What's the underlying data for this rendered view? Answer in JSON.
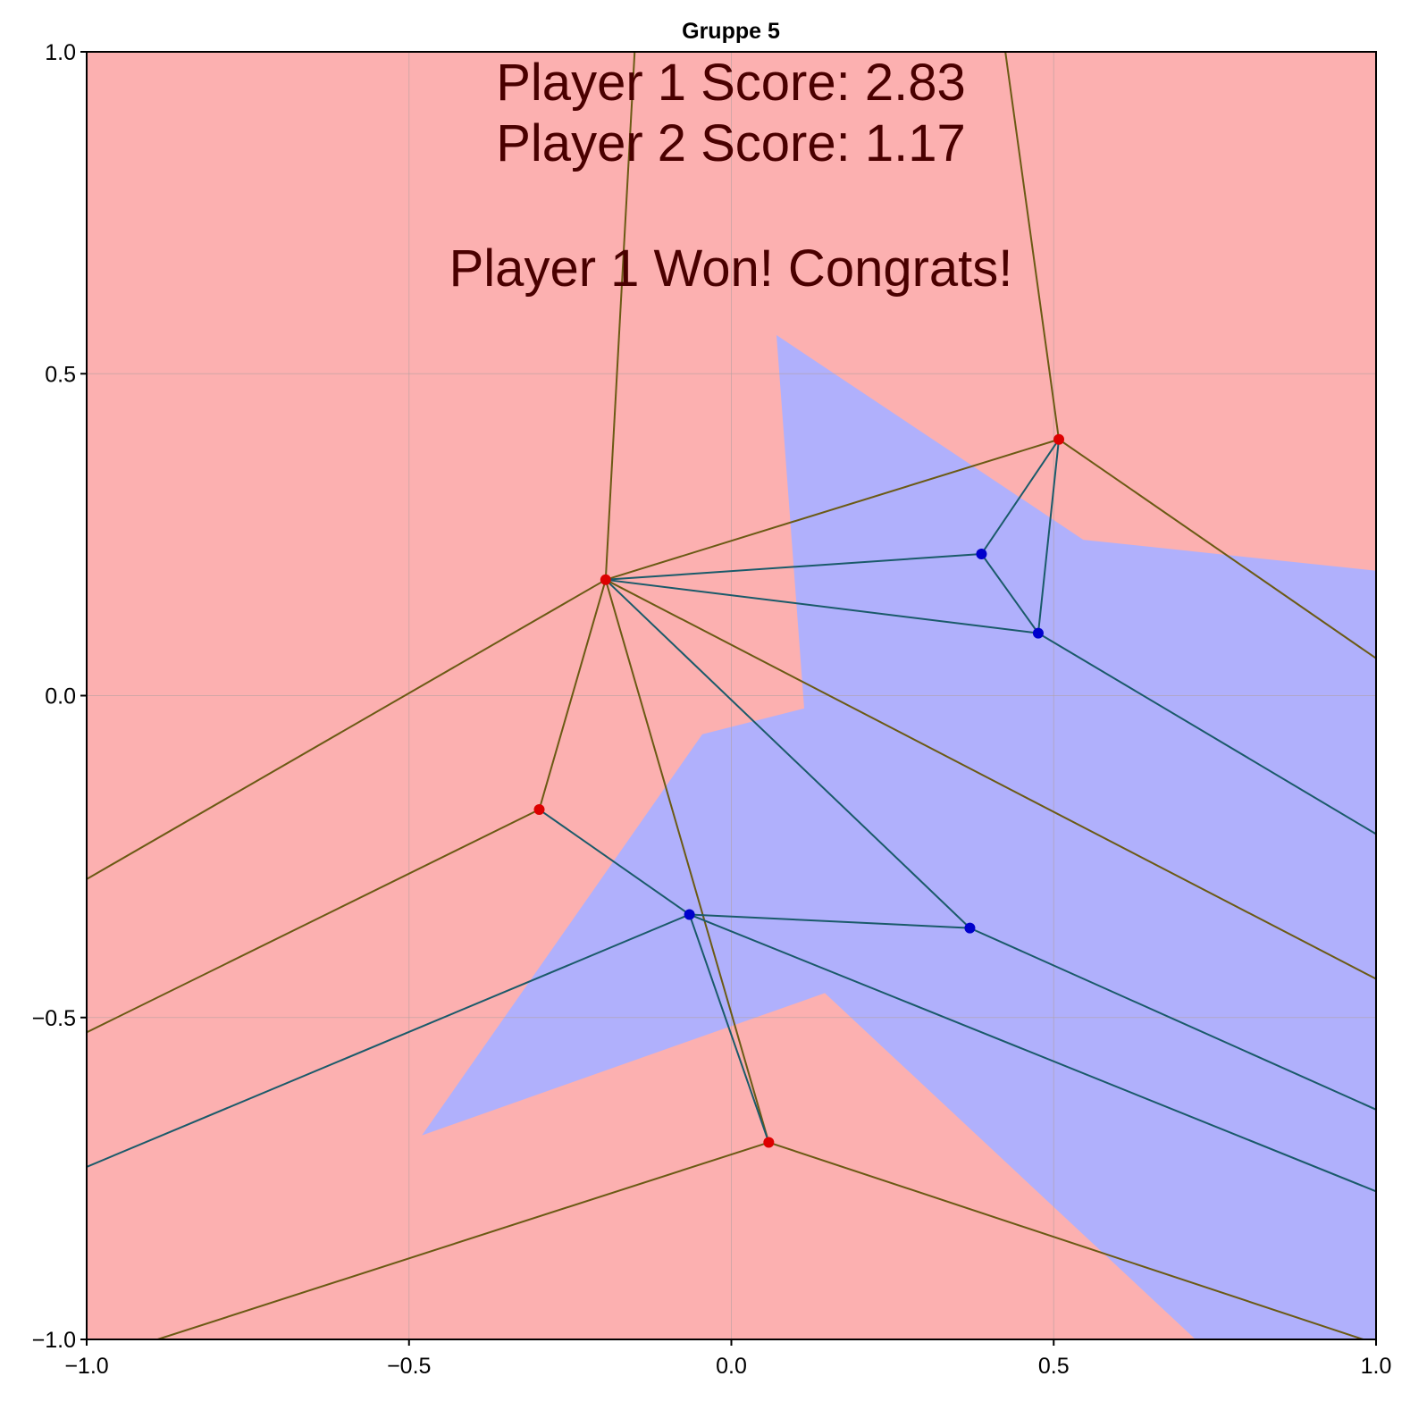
{
  "chart_data": {
    "type": "scatter",
    "title": "Gruppe 5",
    "xlim": [
      -1.0,
      1.0
    ],
    "ylim": [
      -1.0,
      1.0
    ],
    "x_ticks": [
      -1.0,
      -0.5,
      0.0,
      0.5,
      1.0
    ],
    "y_ticks": [
      -1.0,
      -0.5,
      0.0,
      0.5,
      1.0
    ],
    "x_tick_labels": [
      "−1.0",
      "−0.5",
      "0.0",
      "0.5",
      "1.0"
    ],
    "y_tick_labels": [
      "−1.0",
      "−0.5",
      "0.0",
      "0.5",
      "1.0"
    ],
    "grid": true,
    "colors": {
      "player1_region": "#fcb0b0",
      "player2_region": "#b0b0fc",
      "player1_point": "#dd0000",
      "player2_point": "#0000cc",
      "player1_edge": "#6b5a14",
      "player2_edge": "#1a5a6a",
      "annotation_text": "#4a0000",
      "grid": "#b0a0a0"
    },
    "region_player2": [
      [
        0.07,
        0.56
      ],
      [
        0.546,
        0.242
      ],
      [
        1.0,
        0.194
      ],
      [
        1.0,
        -1.0
      ],
      [
        0.72,
        -1.0
      ],
      [
        0.145,
        -0.462
      ],
      [
        -0.48,
        -0.683
      ],
      [
        -0.045,
        -0.06
      ],
      [
        0.113,
        -0.02
      ]
    ],
    "series": [
      {
        "name": "Player 1",
        "points": [
          [
            -0.195,
            0.18
          ],
          [
            0.508,
            0.398
          ],
          [
            -0.298,
            -0.177
          ],
          [
            0.058,
            -0.694
          ]
        ]
      },
      {
        "name": "Player 2",
        "points": [
          [
            0.388,
            0.22
          ],
          [
            0.476,
            0.097
          ],
          [
            -0.065,
            -0.34
          ],
          [
            0.37,
            -0.361
          ]
        ]
      }
    ],
    "edges": [
      {
        "from": [
          -0.195,
          0.18
        ],
        "to": [
          -0.15,
          1.0
        ],
        "owner": 1
      },
      {
        "from": [
          -0.195,
          0.18
        ],
        "to": [
          0.508,
          0.398
        ],
        "owner": 1
      },
      {
        "from": [
          -0.195,
          0.18
        ],
        "to": [
          -1.0,
          -0.285
        ],
        "owner": 1
      },
      {
        "from": [
          -0.195,
          0.18
        ],
        "to": [
          -0.298,
          -0.177
        ],
        "owner": 1
      },
      {
        "from": [
          -0.195,
          0.18
        ],
        "to": [
          0.058,
          -0.694
        ],
        "owner": 1
      },
      {
        "from": [
          -0.195,
          0.18
        ],
        "to": [
          1.0,
          -0.44
        ],
        "owner": 1
      },
      {
        "from": [
          -0.195,
          0.18
        ],
        "to": [
          0.388,
          0.22
        ],
        "owner": 2
      },
      {
        "from": [
          -0.195,
          0.18
        ],
        "to": [
          0.476,
          0.097
        ],
        "owner": 2
      },
      {
        "from": [
          -0.195,
          0.18
        ],
        "to": [
          0.37,
          -0.361
        ],
        "owner": 2
      },
      {
        "from": [
          0.508,
          0.398
        ],
        "to": [
          0.425,
          1.0
        ],
        "owner": 1
      },
      {
        "from": [
          0.508,
          0.398
        ],
        "to": [
          1.0,
          0.058
        ],
        "owner": 1
      },
      {
        "from": [
          0.508,
          0.398
        ],
        "to": [
          0.388,
          0.22
        ],
        "owner": 2
      },
      {
        "from": [
          0.508,
          0.398
        ],
        "to": [
          0.476,
          0.097
        ],
        "owner": 2
      },
      {
        "from": [
          0.388,
          0.22
        ],
        "to": [
          0.476,
          0.097
        ],
        "owner": 2
      },
      {
        "from": [
          0.476,
          0.097
        ],
        "to": [
          1.0,
          -0.215
        ],
        "owner": 2
      },
      {
        "from": [
          -0.298,
          -0.177
        ],
        "to": [
          -1.0,
          -0.523
        ],
        "owner": 1
      },
      {
        "from": [
          -0.298,
          -0.177
        ],
        "to": [
          -0.065,
          -0.34
        ],
        "owner": 2
      },
      {
        "from": [
          -0.065,
          -0.34
        ],
        "to": [
          -1.0,
          -0.732
        ],
        "owner": 2
      },
      {
        "from": [
          -0.065,
          -0.34
        ],
        "to": [
          0.37,
          -0.361
        ],
        "owner": 2
      },
      {
        "from": [
          -0.065,
          -0.34
        ],
        "to": [
          1.0,
          -0.77
        ],
        "owner": 2
      },
      {
        "from": [
          -0.065,
          -0.34
        ],
        "to": [
          0.058,
          -0.694
        ],
        "owner": 2
      },
      {
        "from": [
          0.37,
          -0.361
        ],
        "to": [
          1.0,
          -0.643
        ],
        "owner": 2
      },
      {
        "from": [
          0.058,
          -0.694
        ],
        "to": [
          -0.89,
          -1.0
        ],
        "owner": 1
      },
      {
        "from": [
          0.058,
          -0.694
        ],
        "to": [
          0.98,
          -1.0
        ],
        "owner": 1
      }
    ]
  },
  "annotations": {
    "player1_score": "Player 1 Score: 2.83",
    "player2_score": "Player 2 Score: 1.17",
    "result": "Player 1 Won! Congrats!"
  }
}
